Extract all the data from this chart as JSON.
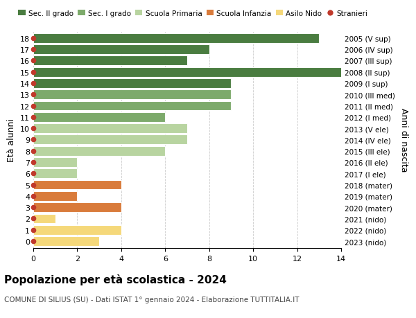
{
  "ages": [
    18,
    17,
    16,
    15,
    14,
    13,
    12,
    11,
    10,
    9,
    8,
    7,
    6,
    5,
    4,
    3,
    2,
    1,
    0
  ],
  "years_labels": [
    "2005 (V sup)",
    "2006 (IV sup)",
    "2007 (III sup)",
    "2008 (II sup)",
    "2009 (I sup)",
    "2010 (III med)",
    "2011 (II med)",
    "2012 (I med)",
    "2013 (V ele)",
    "2014 (IV ele)",
    "2015 (III ele)",
    "2016 (II ele)",
    "2017 (I ele)",
    "2018 (mater)",
    "2019 (mater)",
    "2020 (mater)",
    "2021 (nido)",
    "2022 (nido)",
    "2023 (nido)"
  ],
  "values": [
    13,
    8,
    7,
    15,
    9,
    9,
    9,
    6,
    7,
    7,
    6,
    2,
    2,
    4,
    2,
    4,
    1,
    4,
    3
  ],
  "colors": [
    "#4a7c40",
    "#4a7c40",
    "#4a7c40",
    "#4a7c40",
    "#4a7c40",
    "#7daa6b",
    "#7daa6b",
    "#7daa6b",
    "#b8d4a0",
    "#b8d4a0",
    "#b8d4a0",
    "#b8d4a0",
    "#b8d4a0",
    "#d97b3b",
    "#d97b3b",
    "#d97b3b",
    "#f5d87a",
    "#f5d87a",
    "#f5d87a"
  ],
  "legend_labels": [
    "Sec. II grado",
    "Sec. I grado",
    "Scuola Primaria",
    "Scuola Infanzia",
    "Asilo Nido",
    "Stranieri"
  ],
  "legend_colors": [
    "#4a7c40",
    "#7daa6b",
    "#b8d4a0",
    "#d97b3b",
    "#f5d87a",
    "#c0392b"
  ],
  "title": "Popolazione per età scolastica - 2024",
  "subtitle": "COMUNE DI SILIUS (SU) - Dati ISTAT 1° gennaio 2024 - Elaborazione TUTTITALIA.IT",
  "ylabel_left": "Età alunni",
  "ylabel_right": "Anni di nascita",
  "xlim": [
    0,
    14
  ],
  "xticks": [
    0,
    2,
    4,
    6,
    8,
    10,
    12,
    14
  ],
  "bar_height": 0.85,
  "background_color": "#ffffff",
  "grid_color": "#cccccc",
  "stranieri_color": "#c0392b",
  "bar_edgecolor": "#ffffff",
  "bar_linewidth": 0.8
}
